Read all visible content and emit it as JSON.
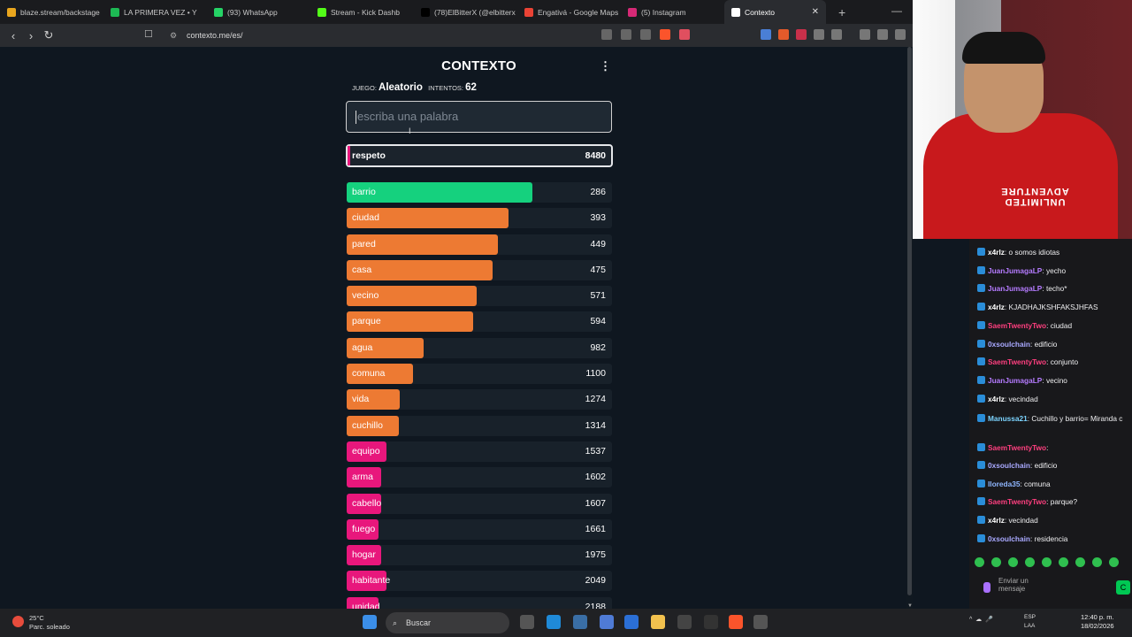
{
  "tabs": [
    {
      "label": "blaze.stream/backstage",
      "color": "#e9a61e"
    },
    {
      "label": "LA PRIMERA VEZ • Y",
      "color": "#1db954"
    },
    {
      "label": "(93) WhatsApp",
      "color": "#25d366"
    },
    {
      "label": "Stream - Kick Dashb",
      "color": "#53fc18"
    },
    {
      "label": "(78)ElBitterX (@elbitterx",
      "color": "#000000"
    },
    {
      "label": "Engativá - Google Maps",
      "color": "#ea4335"
    },
    {
      "label": "(5) Instagram",
      "color": "#d62976"
    },
    {
      "label": "Contexto",
      "color": "#ffffff"
    }
  ],
  "address": {
    "url": "contexto.me/es/"
  },
  "game": {
    "title": "CONTEXTO",
    "mode_label": "JUEGO:",
    "mode_value": "Aleatorio",
    "attempts_label": "INTENTOS:",
    "attempts_value": "62",
    "placeholder": "escriba una palabra",
    "current_word": "respeto",
    "current_rank": "8480",
    "guesses": [
      {
        "word": "barrio",
        "rank": "286",
        "fill": 0.7,
        "color": "#15d17e"
      },
      {
        "word": "ciudad",
        "rank": "393",
        "fill": 0.61,
        "color": "#ed7a33"
      },
      {
        "word": "pared",
        "rank": "449",
        "fill": 0.57,
        "color": "#ed7a33"
      },
      {
        "word": "casa",
        "rank": "475",
        "fill": 0.55,
        "color": "#ed7a33"
      },
      {
        "word": "vecino",
        "rank": "571",
        "fill": 0.49,
        "color": "#ed7a33"
      },
      {
        "word": "parque",
        "rank": "594",
        "fill": 0.475,
        "color": "#ed7a33"
      },
      {
        "word": "agua",
        "rank": "982",
        "fill": 0.29,
        "color": "#ed7a33"
      },
      {
        "word": "comuna",
        "rank": "1100",
        "fill": 0.25,
        "color": "#ed7a33"
      },
      {
        "word": "vida",
        "rank": "1274",
        "fill": 0.2,
        "color": "#ed7a33"
      },
      {
        "word": "cuchillo",
        "rank": "1314",
        "fill": 0.195,
        "color": "#ed7a33"
      },
      {
        "word": "equipo",
        "rank": "1537",
        "fill": 0.15,
        "color": "#e8177c"
      },
      {
        "word": "arma",
        "rank": "1602",
        "fill": 0.13,
        "color": "#e8177c"
      },
      {
        "word": "cabello",
        "rank": "1607",
        "fill": 0.13,
        "color": "#e8177c"
      },
      {
        "word": "fuego",
        "rank": "1661",
        "fill": 0.12,
        "color": "#e8177c"
      },
      {
        "word": "hogar",
        "rank": "1975",
        "fill": 0.13,
        "color": "#e8177c"
      },
      {
        "word": "habitante",
        "rank": "2049",
        "fill": 0.15,
        "color": "#e8177c"
      },
      {
        "word": "unidad",
        "rank": "2188",
        "fill": 0.12,
        "color": "#e8177c"
      }
    ]
  },
  "cam": {
    "shirt_text": "UNLIMITED ADVENTURE"
  },
  "chat": {
    "messages": [
      {
        "user": "x4rlz",
        "text": ": o somos idiotas",
        "color": "#ffffff"
      },
      {
        "user": "JuanJumagaLP",
        "text": ": yecho",
        "color": "#b57bff"
      },
      {
        "user": "JuanJumagaLP",
        "text": ": techo*",
        "color": "#b57bff"
      },
      {
        "user": "x4rlz",
        "text": ": KJADHAJKSHFAKSJHFAS",
        "color": "#ffffff"
      },
      {
        "user": "SaemTwentyTwo",
        "text": ": ciudad",
        "color": "#ff3f7f"
      },
      {
        "user": "0xsoulchain",
        "text": ": edificio",
        "color": "#a9a9ff"
      },
      {
        "user": "SaemTwentyTwo",
        "text": ": conjunto",
        "color": "#ff3f7f"
      },
      {
        "user": "JuanJumagaLP",
        "text": ": vecino",
        "color": "#b57bff"
      },
      {
        "user": "x4rlz",
        "text": ": vecindad",
        "color": "#ffffff"
      },
      {
        "user": "Manussa21",
        "text": ": Cuchillo y barrio= Miranda c",
        "color": "#7cd4ff"
      },
      {
        "user": "SaemTwentyTwo",
        "text": ":",
        "color": "#ff3f7f"
      },
      {
        "user": "0xsoulchain",
        "text": ": edificio",
        "color": "#a9a9ff"
      },
      {
        "user": "lloreda35",
        "text": ": comuna",
        "color": "#8fb6ff"
      },
      {
        "user": "SaemTwentyTwo",
        "text": ": parque?",
        "color": "#ff3f7f"
      },
      {
        "user": "x4rlz",
        "text": ": vecindad",
        "color": "#ffffff"
      },
      {
        "user": "0xsoulchain",
        "text": ": residencia",
        "color": "#a9a9ff"
      }
    ],
    "input_placeholder": "Enviar un mensaje"
  },
  "taskbar": {
    "temp": "25°C",
    "weather": "Parc. soleado",
    "search": "Buscar",
    "lang": "ESP",
    "lang2": "LAA",
    "time": "12:40 p. m.",
    "date": "18/02/2026"
  }
}
